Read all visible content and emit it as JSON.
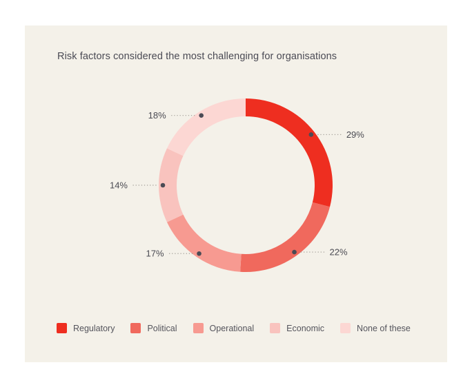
{
  "page": {
    "background": "#ffffff",
    "card_background": "#f4f1e9"
  },
  "chart_data": {
    "type": "pie",
    "subtype": "donut",
    "title": "Risk factors considered the most challenging for organisations",
    "categories": [
      "Regulatory",
      "Political",
      "Operational",
      "Economic",
      "None of these"
    ],
    "values": [
      29,
      22,
      17,
      14,
      18
    ],
    "unit": "%",
    "series_colors": [
      "#ee2e20",
      "#f0695d",
      "#f79a91",
      "#f9c3be",
      "#fcd7d3"
    ],
    "start_angle_deg": 0,
    "direction": "clockwise",
    "inner_radius_pct": 79,
    "data_labels": [
      "29%",
      "22%",
      "17%",
      "14%",
      "18%"
    ],
    "label_style": "dot-with-dotted-leader",
    "label_dot_color": "#4b4b55",
    "leader_line_color": "#a9a59e",
    "label_text_color": "#4a4a52",
    "title_color": "#4a4a54",
    "legend_position": "bottom",
    "legend_text_color": "#54545c",
    "grid": false
  }
}
